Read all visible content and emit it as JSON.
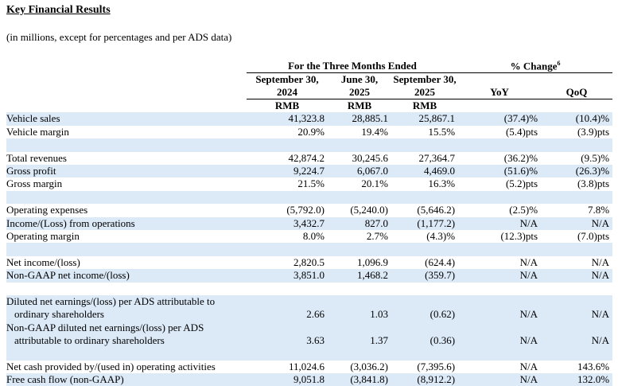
{
  "title": "Key Financial Results",
  "subtitle": "(in millions, except for percentages and per ADS data)",
  "header": {
    "period_label": "For the Three Months Ended",
    "change_label": "% Change",
    "change_note": "6",
    "periods": [
      [
        "September 30,",
        "2024"
      ],
      [
        "June 30,",
        "2025"
      ],
      [
        "September 30,",
        "2025"
      ]
    ],
    "changes": [
      "YoY",
      "QoQ"
    ],
    "currency": [
      "RMB",
      "RMB",
      "RMB"
    ]
  },
  "table": {
    "groups": [
      [
        {
          "label": "Vehicle sales",
          "values": [
            "41,323.8",
            "28,885.1",
            "25,867.1",
            "(37.4)%",
            "(10.4)%"
          ]
        },
        {
          "label": "Vehicle margin",
          "values": [
            "20.9%",
            "19.4%",
            "15.5%",
            "(5.4)pts",
            "(3.9)pts"
          ]
        }
      ],
      [
        {
          "label": "Total revenues",
          "values": [
            "42,874.2",
            "30,245.6",
            "27,364.7",
            "(36.2)%",
            "(9.5)%"
          ]
        },
        {
          "label": "Gross profit",
          "values": [
            "9,224.7",
            "6,067.0",
            "4,469.0",
            "(51.6)%",
            "(26.3)%"
          ]
        },
        {
          "label": "Gross margin",
          "values": [
            "21.5%",
            "20.1%",
            "16.3%",
            "(5.2)pts",
            "(3.8)pts"
          ]
        }
      ],
      [
        {
          "label": "Operating expenses",
          "values": [
            "(5,792.0)",
            "(5,240.0)",
            "(5,646.2)",
            "(2.5)%",
            "7.8%"
          ]
        },
        {
          "label": "Income/(Loss) from operations",
          "values": [
            "3,432.7",
            "827.0",
            "(1,177.2)",
            "N/A",
            "N/A"
          ]
        },
        {
          "label": "Operating margin",
          "values": [
            "8.0%",
            "2.7%",
            "(4.3)%",
            "(12.3)pts",
            "(7.0)pts"
          ]
        }
      ],
      [
        {
          "label": "Net income/(loss)",
          "values": [
            "2,820.5",
            "1,096.9",
            "(624.4)",
            "N/A",
            "N/A"
          ]
        },
        {
          "label": "Non-GAAP net income/(loss)",
          "values": [
            "3,851.0",
            "1,468.2",
            "(359.7)",
            "N/A",
            "N/A"
          ]
        }
      ],
      [
        {
          "label": [
            "Diluted net earnings/(loss) per ADS attributable to",
            "ordinary shareholders"
          ],
          "values": [
            "2.66",
            "1.03",
            "(0.62)",
            "N/A",
            "N/A"
          ]
        },
        {
          "label": [
            "Non-GAAP diluted net earnings/(loss) per ADS",
            "attributable to ordinary shareholders"
          ],
          "values": [
            "3.63",
            "1.37",
            "(0.36)",
            "N/A",
            "N/A"
          ]
        }
      ],
      [
        {
          "label": "Net cash provided by/(used in) operating activities",
          "values": [
            "11,024.6",
            "(3,036.2)",
            "(7,395.6)",
            "N/A",
            "143.6%"
          ]
        },
        {
          "label": "Free cash flow (non-GAAP)",
          "values": [
            "9,051.8",
            "(3,841.8)",
            "(8,912.2)",
            "N/A",
            "132.0%"
          ]
        }
      ]
    ]
  }
}
